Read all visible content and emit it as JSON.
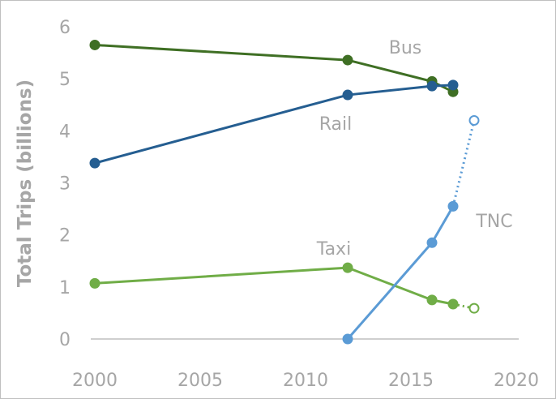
{
  "chart_data": {
    "type": "line",
    "title": "",
    "xlabel": "",
    "ylabel": "Total Trips (billions)",
    "xlim": [
      2000,
      2020
    ],
    "ylim": [
      0,
      6
    ],
    "xticks": [
      2000,
      2005,
      2010,
      2015,
      2020
    ],
    "yticks": [
      0,
      1,
      2,
      3,
      4,
      5,
      6
    ],
    "grid": false,
    "series": [
      {
        "name": "Bus",
        "color": "#3f6f24",
        "x": [
          2000,
          2012,
          2016,
          2017
        ],
        "y": [
          5.65,
          5.36,
          4.95,
          4.75
        ],
        "projected": null
      },
      {
        "name": "Rail",
        "color": "#255e91",
        "x": [
          2000,
          2012,
          2016,
          2017
        ],
        "y": [
          3.38,
          4.69,
          4.86,
          4.88
        ],
        "projected": null
      },
      {
        "name": "Taxi",
        "color": "#70ad47",
        "x": [
          2000,
          2012,
          2016,
          2017
        ],
        "y": [
          1.07,
          1.37,
          0.75,
          0.67
        ],
        "projected": {
          "x": 2018,
          "y": 0.59
        }
      },
      {
        "name": "TNC",
        "color": "#5b9bd5",
        "x": [
          2012,
          2016,
          2017
        ],
        "y": [
          0.0,
          1.85,
          2.55
        ],
        "projected": {
          "x": 2018,
          "y": 4.2
        }
      }
    ],
    "series_labels": [
      {
        "text": "Bus",
        "series": "Bus"
      },
      {
        "text": "Rail",
        "series": "Rail"
      },
      {
        "text": "Taxi",
        "series": "Taxi"
      },
      {
        "text": "TNC",
        "series": "TNC"
      }
    ]
  }
}
